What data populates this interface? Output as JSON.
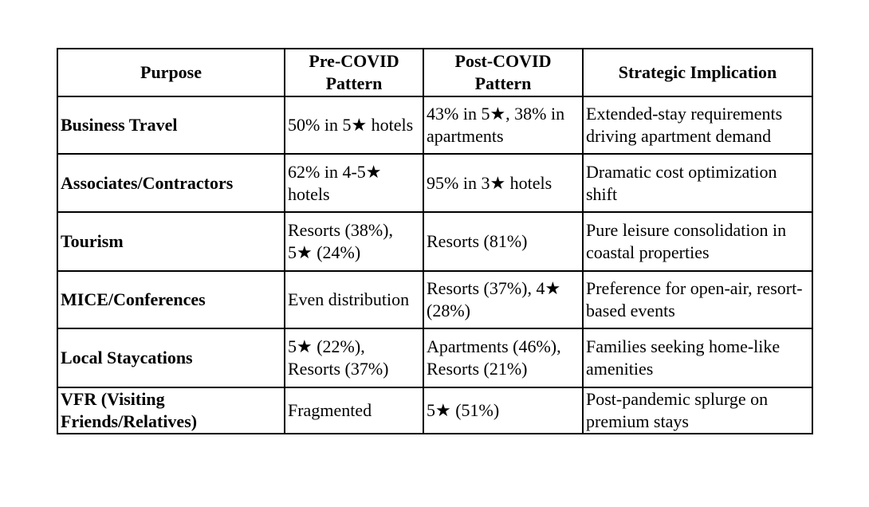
{
  "table": {
    "headers": [
      "Purpose",
      "Pre-COVID Pattern",
      "Post-COVID Pattern",
      "Strategic Implication"
    ],
    "rows": [
      {
        "purpose": "Business Travel",
        "pre": "50% in 5★ hotels",
        "post": "43% in 5★, 38% in apartments",
        "implication": "Extended-stay requirements driving apartment demand"
      },
      {
        "purpose": "Associates/Contractors",
        "pre": "62% in 4-5★ hotels",
        "post": "95% in 3★ hotels",
        "implication": "Dramatic cost optimization shift"
      },
      {
        "purpose": "Tourism",
        "pre": "Resorts (38%), 5★ (24%)",
        "post": "Resorts (81%)",
        "implication": "Pure leisure consolidation in coastal properties"
      },
      {
        "purpose": "MICE/Conferences",
        "pre": "Even distribution",
        "post": "Resorts (37%), 4★ (28%)",
        "implication": "Preference for open-air, resort-based events"
      },
      {
        "purpose": "Local Staycations",
        "pre": "5★ (22%), Resorts (37%)",
        "post": "Apartments (46%), Resorts (21%)",
        "implication": "Families seeking home-like amenities"
      },
      {
        "purpose": "VFR (Visiting Friends/Relatives)",
        "pre": "Fragmented",
        "post": "5★ (51%)",
        "implication": "Post-pandemic splurge on premium stays"
      }
    ]
  }
}
